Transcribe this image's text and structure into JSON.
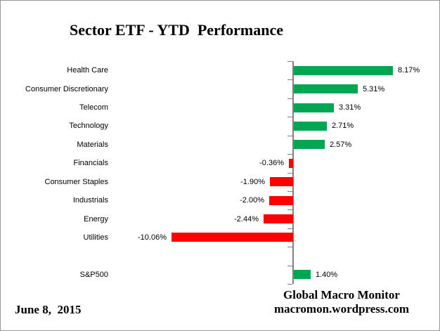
{
  "title": "Sector ETF - YTD  Performance",
  "footer": {
    "date": "June 8,  2015",
    "credit_line1": "Global Macro Monitor",
    "credit_line2": "macromon.wordpress.com"
  },
  "chart_data": {
    "type": "bar",
    "orientation": "horizontal",
    "title": "Sector ETF - YTD  Performance",
    "categories": [
      "Health Care",
      "Consumer Discretionary",
      "Telecom",
      "Technology",
      "Materials",
      "Financials",
      "Consumer Staples",
      "Industrials",
      "Energy",
      "Utilities",
      "S&P500"
    ],
    "values": [
      8.17,
      5.31,
      3.31,
      2.71,
      2.57,
      -0.36,
      -1.9,
      -2.0,
      -2.44,
      -10.06,
      1.4
    ],
    "value_labels": [
      "8.17%",
      "5.31%",
      "3.31%",
      "2.71%",
      "2.57%",
      "-0.36%",
      "-1.90%",
      "-2.00%",
      "-2.44%",
      "-10.06%",
      "1.40%"
    ],
    "gap_slot_before_last_category": true,
    "positive_color": "#00A651",
    "negative_color": "#FF0000",
    "axis_color": "#808080",
    "xlim": [
      -12,
      12
    ],
    "grid": false,
    "legend": false,
    "value_labels_shown": true
  }
}
